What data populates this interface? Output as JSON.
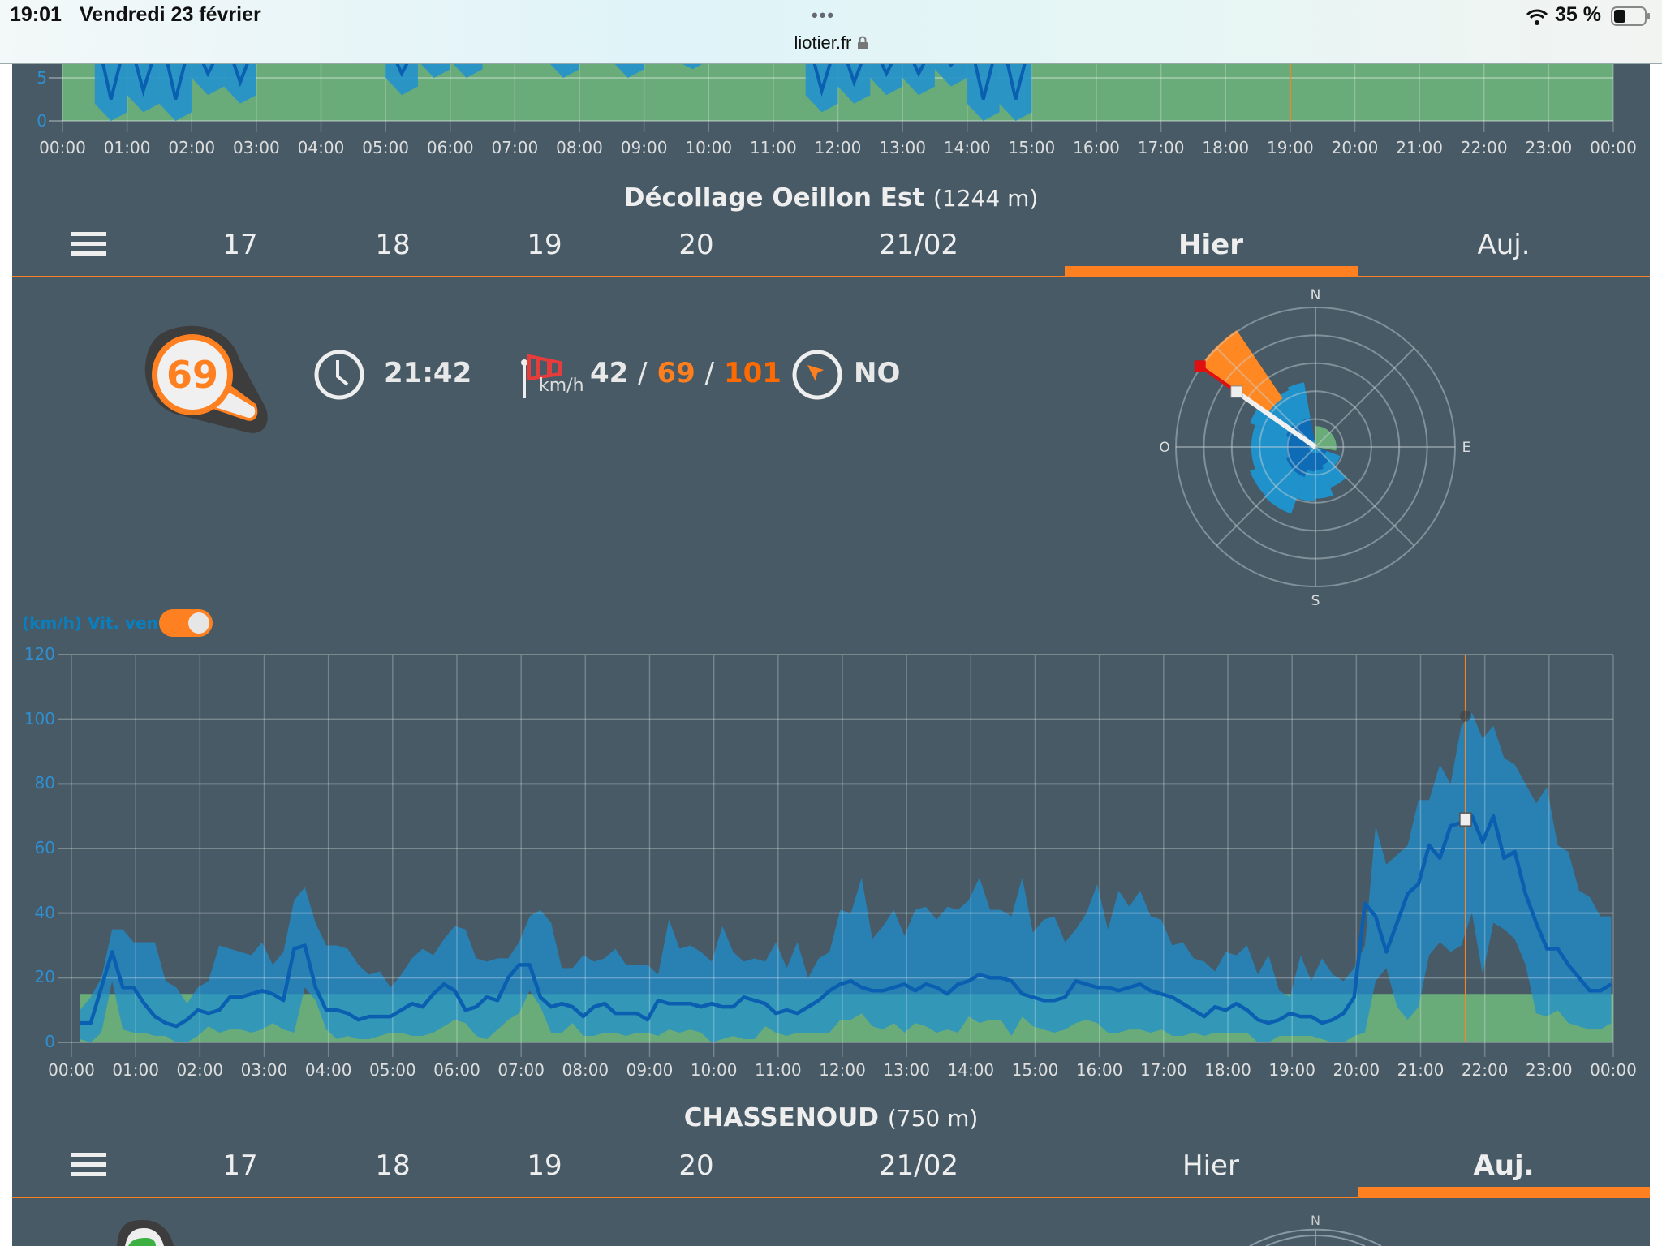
{
  "status_bar": {
    "time": "19:01",
    "date": "Vendredi 23 février",
    "url": "liotier.fr",
    "battery": "35 %"
  },
  "mini_chart": {
    "y_labels": [
      "5",
      "0"
    ],
    "x_labels": [
      "00:00",
      "01:00",
      "02:00",
      "03:00",
      "04:00",
      "05:00",
      "06:00",
      "07:00",
      "08:00",
      "09:00",
      "10:00",
      "11:00",
      "12:00",
      "13:00",
      "14:00",
      "15:00",
      "16:00",
      "17:00",
      "18:00",
      "19:00",
      "20:00",
      "21:00",
      "22:00",
      "23:00",
      "00:00"
    ],
    "cursor_hour": 19,
    "min_30min": [
      9,
      0,
      1,
      0,
      3,
      2,
      9,
      9,
      9,
      9,
      3,
      5,
      5,
      9,
      9,
      5,
      9,
      5,
      9,
      6,
      9,
      9,
      9,
      1,
      2,
      3,
      3,
      4,
      0,
      0,
      9,
      9,
      9,
      9,
      9,
      9,
      9,
      9,
      9,
      9,
      9,
      9,
      9,
      9,
      9,
      9,
      9,
      9
    ]
  },
  "station1": {
    "name": "Décollage Oeillon Est",
    "altitude": "(1244 m)",
    "tabs": [
      "17",
      "18",
      "19",
      "20",
      "21/02",
      "Hier",
      "Auj."
    ],
    "active_tab": 5,
    "badge_value": "69",
    "time": "21:42",
    "wind_unit": "km/h",
    "wind_min": "42",
    "wind_avg": "69",
    "wind_max": "101",
    "sep": "/",
    "direction": "NO",
    "rose": {
      "labels": {
        "n": "N",
        "s": "S",
        "e": "E",
        "w": "O"
      },
      "max_ring": 100,
      "current": {
        "from_deg": 305,
        "to_deg": 326,
        "min": 42,
        "avg": 69,
        "max": 101,
        "bearing": 305
      },
      "history_sectors": [
        {
          "from": 335,
          "to": 350,
          "max": 47
        },
        {
          "from": 315,
          "to": 335,
          "max": 45
        },
        {
          "from": 290,
          "to": 315,
          "max": 50
        },
        {
          "from": 270,
          "to": 290,
          "max": 46
        },
        {
          "from": 250,
          "to": 270,
          "max": 46
        },
        {
          "from": 225,
          "to": 250,
          "max": 50
        },
        {
          "from": 200,
          "to": 225,
          "max": 51
        },
        {
          "from": 180,
          "to": 200,
          "max": 39
        },
        {
          "from": 160,
          "to": 180,
          "max": 37
        },
        {
          "from": 135,
          "to": 160,
          "max": 31
        },
        {
          "from": 110,
          "to": 135,
          "max": 19
        }
      ],
      "calm_sector": {
        "from": 0,
        "to": 100,
        "max": 15
      }
    }
  },
  "chart_data": {
    "type": "area",
    "series_label": "(km/h) Vit. vent",
    "toggle_on": true,
    "ylim": [
      0,
      120
    ],
    "y_ticks": [
      "0",
      "20",
      "40",
      "60",
      "80",
      "100",
      "120"
    ],
    "x_labels": [
      "00:00",
      "01:00",
      "02:00",
      "03:00",
      "04:00",
      "05:00",
      "06:00",
      "07:00",
      "08:00",
      "09:00",
      "10:00",
      "11:00",
      "12:00",
      "13:00",
      "14:00",
      "15:00",
      "16:00",
      "17:00",
      "18:00",
      "19:00",
      "20:00",
      "21:00",
      "22:00",
      "23:00",
      "00:00"
    ],
    "step_minutes": 10,
    "calm_band": 15,
    "cursor": {
      "time": "21:42",
      "value": 69,
      "max": 101
    },
    "avg": [
      6,
      6,
      17,
      28,
      17,
      17,
      12,
      8,
      6,
      5,
      7,
      10,
      9,
      10,
      14,
      14,
      15,
      16,
      15,
      13,
      29,
      30,
      17,
      10,
      10,
      9,
      7,
      8,
      8,
      8,
      10,
      12,
      11,
      15,
      18,
      16,
      10,
      11,
      14,
      13,
      20,
      24,
      24,
      14,
      11,
      12,
      11,
      8,
      11,
      12,
      9,
      9,
      9,
      7,
      13,
      12,
      12,
      12,
      11,
      12,
      11,
      11,
      14,
      13,
      12,
      9,
      10,
      9,
      11,
      13,
      16,
      18,
      19,
      17,
      16,
      16,
      17,
      18,
      16,
      18,
      17,
      15,
      18,
      19,
      21,
      20,
      20,
      19,
      15,
      14,
      13,
      13,
      14,
      19,
      18,
      17,
      17,
      16,
      17,
      18,
      16,
      15,
      14,
      12,
      10,
      8,
      11,
      10,
      12,
      10,
      7,
      6,
      7,
      9,
      8,
      8,
      6,
      7,
      9,
      14,
      43,
      39,
      28,
      37,
      46,
      49,
      61,
      57,
      67,
      68,
      70,
      62,
      70,
      57,
      59,
      46,
      37,
      29,
      29,
      24,
      20,
      16,
      16,
      18
    ],
    "min": [
      1,
      0,
      3,
      19,
      4,
      3,
      3,
      2,
      2,
      0,
      0,
      2,
      5,
      3,
      4,
      4,
      3,
      4,
      6,
      4,
      3,
      17,
      13,
      4,
      1,
      2,
      1,
      1,
      2,
      3,
      3,
      2,
      2,
      3,
      5,
      7,
      6,
      2,
      1,
      4,
      7,
      9,
      16,
      11,
      3,
      3,
      6,
      2,
      2,
      3,
      3,
      2,
      3,
      3,
      2,
      4,
      3,
      4,
      3,
      0,
      1,
      2,
      1,
      1,
      5,
      3,
      2,
      3,
      3,
      3,
      3,
      7,
      7,
      9,
      5,
      4,
      6,
      3,
      6,
      5,
      3,
      4,
      3,
      8,
      6,
      7,
      7,
      2,
      8,
      5,
      4,
      3,
      4,
      6,
      7,
      6,
      3,
      3,
      4,
      4,
      3,
      4,
      2,
      2,
      3,
      2,
      3,
      3,
      3,
      3,
      0,
      0,
      2,
      2,
      2,
      2,
      1,
      0,
      0,
      2,
      3,
      19,
      23,
      11,
      7,
      11,
      27,
      31,
      28,
      30,
      40,
      21,
      37,
      35,
      32,
      24,
      9,
      8,
      10,
      6,
      5,
      4,
      4,
      6
    ],
    "max": [
      10,
      14,
      20,
      35,
      35,
      31,
      31,
      31,
      19,
      17,
      12,
      17,
      19,
      30,
      29,
      28,
      27,
      31,
      24,
      28,
      44,
      48,
      37,
      30,
      30,
      29,
      24,
      21,
      22,
      17,
      21,
      26,
      29,
      27,
      32,
      36,
      35,
      26,
      25,
      26,
      26,
      31,
      39,
      41,
      37,
      23,
      23,
      27,
      25,
      26,
      29,
      24,
      24,
      24,
      21,
      38,
      29,
      30,
      28,
      25,
      36,
      28,
      25,
      26,
      25,
      31,
      23,
      31,
      20,
      26,
      28,
      41,
      40,
      51,
      32,
      36,
      41,
      33,
      41,
      42,
      38,
      42,
      41,
      44,
      51,
      41,
      41,
      39,
      51,
      34,
      38,
      39,
      31,
      35,
      40,
      49,
      35,
      47,
      42,
      47,
      39,
      38,
      30,
      31,
      26,
      25,
      22,
      28,
      27,
      30,
      21,
      27,
      16,
      14,
      27,
      19,
      26,
      21,
      19,
      23,
      30,
      67,
      55,
      58,
      61,
      75,
      75,
      86,
      80,
      98,
      102,
      94,
      98,
      88,
      86,
      80,
      74,
      79,
      61,
      59,
      47,
      45,
      39,
      39
    ]
  },
  "station2": {
    "name": "CHASSENOUD",
    "altitude": "(750 m)",
    "tabs": [
      "17",
      "18",
      "19",
      "20",
      "21/02",
      "Hier",
      "Auj."
    ],
    "active_tab": 6,
    "rose_n": "N"
  },
  "colors": {
    "panel": "#475a66",
    "accent": "#ff8020",
    "blue_area": "#1e90d2",
    "avg_line": "#0a5fb0",
    "calm_green": "#6aab7a"
  }
}
